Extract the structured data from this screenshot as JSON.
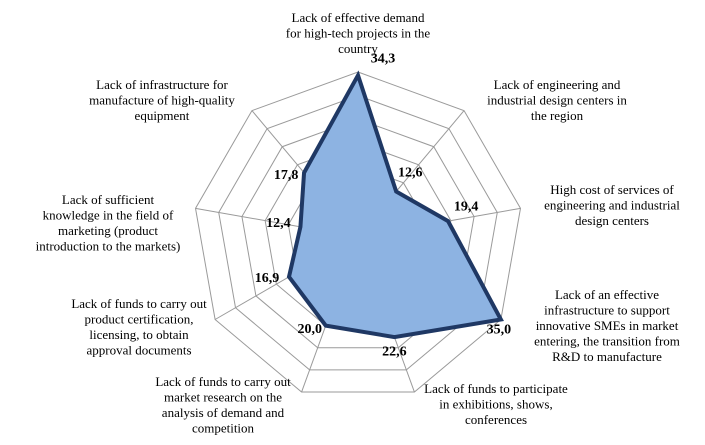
{
  "chart_data": {
    "type": "radar",
    "rmax": 35,
    "rings": 7,
    "grid": true,
    "legend": "none",
    "categories": [
      [
        "Lack of effective demand",
        "for high-tech projects in the",
        "country"
      ],
      [
        "Lack of engineering and",
        "industrial design centers in",
        "the region"
      ],
      [
        "High cost of services of",
        "engineering and industrial",
        "design centers"
      ],
      [
        "Lack of an effective",
        "infrastructure to support",
        "innovative SMEs in market",
        "entering, the transition from",
        "R&D to manufacture"
      ],
      [
        "Lack of funds to participate",
        "in exhibitions, shows,",
        "conferences"
      ],
      [
        "Lack of funds to carry out",
        "market research on the",
        "analysis of demand and",
        "competition"
      ],
      [
        "Lack of funds to carry out",
        "product certification,",
        "licensing, to obtain",
        "approval documents"
      ],
      [
        "Lack of sufficient",
        "knowledge in the field of",
        "marketing (product",
        "introduction to the markets)"
      ],
      [
        "Lack of  infrastructure for",
        "manufacture of high-quality",
        "equipment"
      ]
    ],
    "values": [
      34.3,
      12.6,
      19.4,
      35.0,
      22.6,
      20.0,
      16.9,
      12.4,
      17.8
    ],
    "value_labels": [
      "34,3",
      "12,6",
      "19,4",
      "35,0",
      "22,6",
      "20,0",
      "16,9",
      "12,4",
      "17,8"
    ],
    "colors": {
      "fill": "#8db3e2",
      "stroke": "#1f3864",
      "grid": "#9a9a9a"
    }
  }
}
